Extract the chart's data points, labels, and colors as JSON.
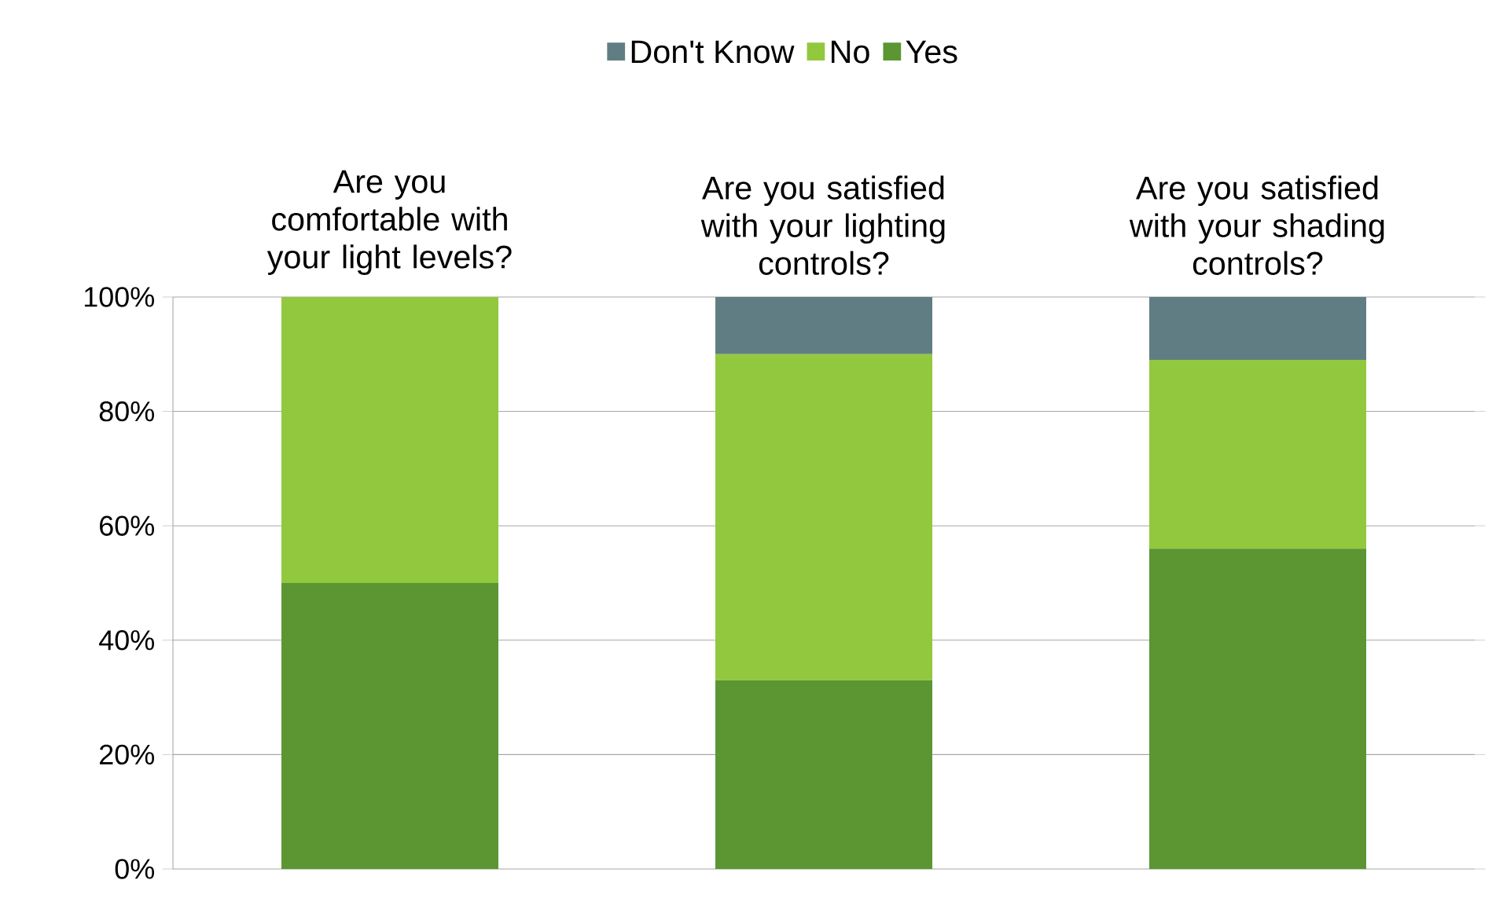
{
  "chart_data": {
    "type": "bar",
    "stacked": true,
    "categories": [
      "Are you comfortable with your light levels?",
      "Are you satisfied with your lighting controls?",
      "Are you satisfied with your shading controls?"
    ],
    "series": [
      {
        "name": "Yes",
        "color": "#5b9632",
        "values": [
          50,
          33,
          56
        ]
      },
      {
        "name": "No",
        "color": "#92c83e",
        "values": [
          50,
          57,
          33
        ]
      },
      {
        "name": "Don't Know",
        "color": "#617d84",
        "values": [
          0,
          10,
          11
        ]
      }
    ],
    "ylim": [
      0,
      100
    ],
    "yticks": [
      {
        "value": 0,
        "label": "0%"
      },
      {
        "value": 20,
        "label": "20%"
      },
      {
        "value": 40,
        "label": "40%"
      },
      {
        "value": 60,
        "label": "60%"
      },
      {
        "value": 80,
        "label": "80%"
      },
      {
        "value": 100,
        "label": "100%"
      }
    ],
    "grid": "y",
    "legend": "top"
  }
}
